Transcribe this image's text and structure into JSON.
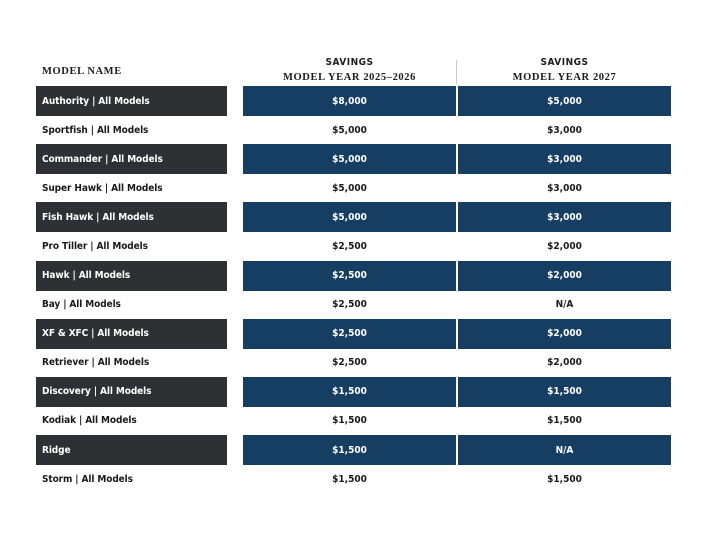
{
  "header": {
    "model_name": "MODEL NAME",
    "col1_line1": "SAVINGS",
    "col1_line2": "MODEL YEAR 2025–2026",
    "col2_line1": "SAVINGS",
    "col2_line2": "MODEL YEAR 2027"
  },
  "colors": {
    "dark_name_bg": "#2e3033",
    "dark_value_bg": "#163e63",
    "light_text": "#1a1a1a"
  },
  "rows": [
    {
      "name": "Authority | All Models",
      "v1": "$8,000",
      "v2": "$5,000",
      "style": "dark"
    },
    {
      "name": "Sportfish | All Models",
      "v1": "$5,000",
      "v2": "$3,000",
      "style": "light"
    },
    {
      "name": "Commander | All Models",
      "v1": "$5,000",
      "v2": "$3,000",
      "style": "dark"
    },
    {
      "name": "Super Hawk | All Models",
      "v1": "$5,000",
      "v2": "$3,000",
      "style": "light"
    },
    {
      "name": "Fish Hawk | All Models",
      "v1": "$5,000",
      "v2": "$3,000",
      "style": "dark"
    },
    {
      "name": "Pro Tiller | All Models",
      "v1": "$2,500",
      "v2": "$2,000",
      "style": "light"
    },
    {
      "name": "Hawk | All Models",
      "v1": "$2,500",
      "v2": "$2,000",
      "style": "dark"
    },
    {
      "name": "Bay | All Models",
      "v1": "$2,500",
      "v2": "N/A",
      "style": "light"
    },
    {
      "name": "XF & XFC | All Models",
      "v1": "$2,500",
      "v2": "$2,000",
      "style": "dark"
    },
    {
      "name": "Retriever | All Models",
      "v1": "$2,500",
      "v2": "$2,000",
      "style": "light"
    },
    {
      "name": "Discovery | All Models",
      "v1": "$1,500",
      "v2": "$1,500",
      "style": "dark"
    },
    {
      "name": "Kodiak | All Models",
      "v1": "$1,500",
      "v2": "$1,500",
      "style": "light"
    },
    {
      "name": "Ridge",
      "v1": "$1,500",
      "v2": "N/A",
      "style": "dark"
    },
    {
      "name": "Storm | All Models",
      "v1": "$1,500",
      "v2": "$1,500",
      "style": "light"
    }
  ]
}
